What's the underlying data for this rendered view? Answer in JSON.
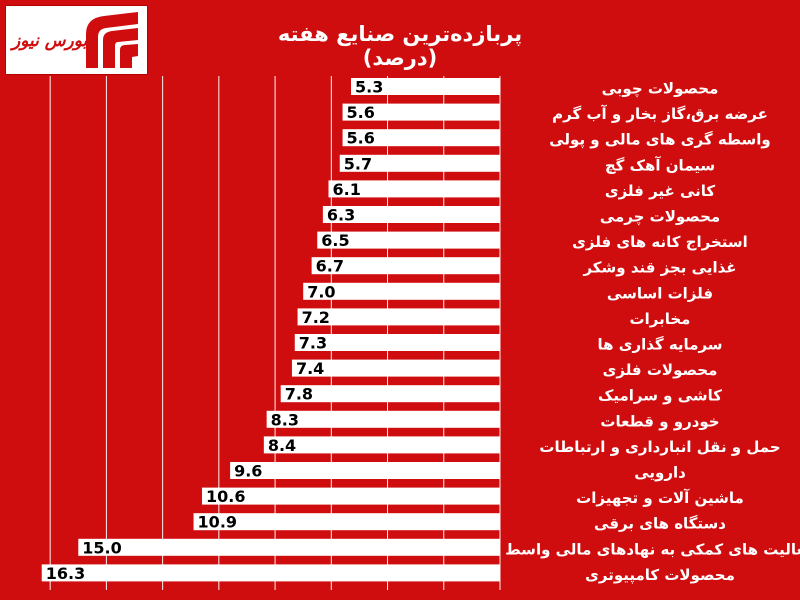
{
  "brand": {
    "logo_text": "بورس نیوز",
    "accent": "#cf0d0f"
  },
  "chart_data": {
    "type": "bar",
    "orientation": "horizontal",
    "title": "پربازده‌ترین صنایع هفته (درصد)",
    "xlim": [
      0,
      17.5
    ],
    "grid": true,
    "categories": [
      "محصولات چوبی",
      "عرضه برق،گاز بخار و آب گرم",
      "واسطه گری های مالی و پولی",
      "سیمان آهک گچ",
      "کانی غیر فلزی",
      "محصولات چرمی",
      "استخراج کانه های فلزی",
      "غذایی بجز قند وشکر",
      "فلزات اساسی",
      "مخابرات",
      "سرمایه گذاری ها",
      "محصولات فلزی",
      "کاشی و سرامیک",
      "خودرو و قطعات",
      "حمل و نقل انبارداری و ارتباطات",
      "دارویی",
      "ماشین آلات و تجهیزات",
      "دستگاه های برقی",
      "فعالیت های کمکی به نهادهای مالی واسط",
      "محصولات کامپیوتری"
    ],
    "values": [
      5.3,
      5.6,
      5.6,
      5.7,
      6.1,
      6.3,
      6.5,
      6.7,
      7.0,
      7.2,
      7.3,
      7.4,
      7.8,
      8.3,
      8.4,
      9.6,
      10.6,
      10.9,
      15.0,
      16.3
    ],
    "value_labels": [
      "5.3",
      "5.6",
      "5.6",
      "5.7",
      "6.1",
      "6.3",
      "6.5",
      "6.7",
      "7.0",
      "7.2",
      "7.3",
      "7.4",
      "7.8",
      "8.3",
      "8.4",
      "9.6",
      "10.6",
      "10.9",
      "15.0",
      "16.3"
    ],
    "colors": {
      "background": "#cf0d0f",
      "bar": "#ffffff",
      "text": "#ffffff",
      "value_text": "#000000",
      "grid": "#ffffff"
    }
  }
}
